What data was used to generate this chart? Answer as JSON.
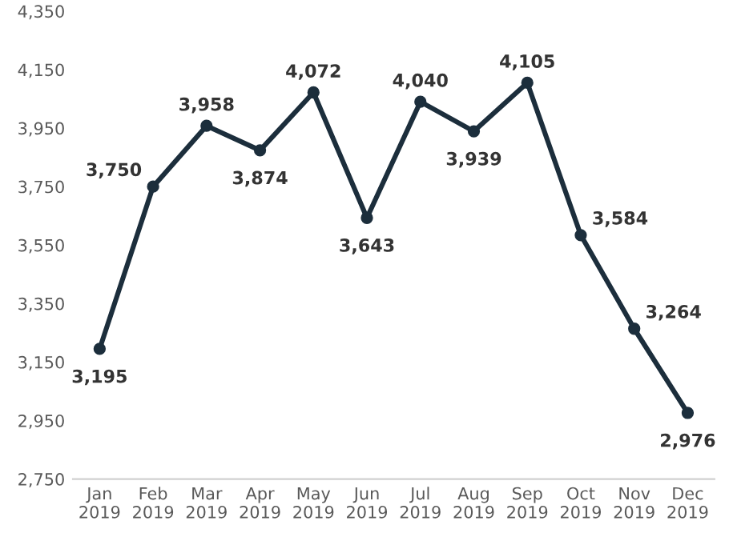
{
  "chart_data": {
    "type": "line",
    "categories": [
      "Jan\n2019",
      "Feb\n2019",
      "Mar\n2019",
      "Apr\n2019",
      "May\n2019",
      "Jun\n2019",
      "Jul\n2019",
      "Aug\n2019",
      "Sep\n2019",
      "Oct\n2019",
      "Nov\n2019",
      "Dec\n2019"
    ],
    "series": [
      {
        "color": "#1c2e3c",
        "values": [
          3195,
          3750,
          3958,
          3874,
          4072,
          3643,
          4040,
          3939,
          4105,
          3584,
          3264,
          2976
        ],
        "value_labels": [
          "3,195",
          "3,750",
          "3,958",
          "3,874",
          "4,072",
          "3,643",
          "4,040",
          "3,939",
          "4,105",
          "3,584",
          "3,264",
          "2,976"
        ]
      }
    ],
    "ylim": [
      2750,
      4350
    ],
    "yticks": [
      {
        "value": 2750,
        "label": "2,750"
      },
      {
        "value": 2950,
        "label": "2,950"
      },
      {
        "value": 3150,
        "label": "3,150"
      },
      {
        "value": 3350,
        "label": "3,350"
      },
      {
        "value": 3550,
        "label": "3,550"
      },
      {
        "value": 3750,
        "label": "3,750"
      },
      {
        "value": 3950,
        "label": "3,950"
      },
      {
        "value": 4150,
        "label": "4,150"
      },
      {
        "value": 4350,
        "label": "4,350"
      }
    ],
    "grid": false,
    "legend": false,
    "marker": "circle",
    "line_style": "solid"
  }
}
